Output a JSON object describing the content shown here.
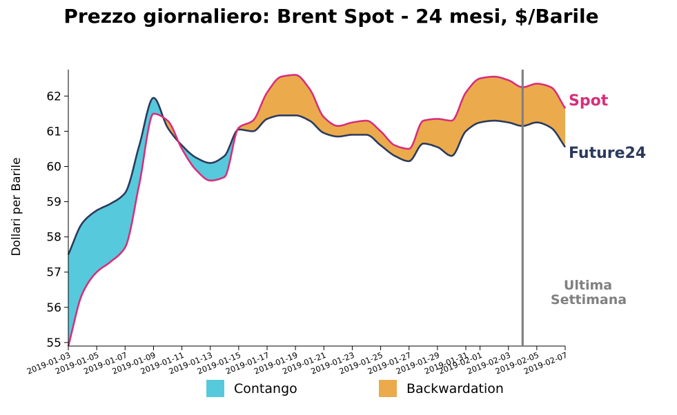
{
  "chart_data": {
    "type": "area",
    "title": "Prezzo giornaliero: Brent Spot - 24 mesi, $/Barile",
    "ylabel": "Dollari per Barile",
    "xlabel": "",
    "ylim": [
      54.9,
      62.75
    ],
    "yticks": [
      55,
      56,
      57,
      58,
      59,
      60,
      61,
      62
    ],
    "x": [
      "2019-01-03",
      "2019-01-04",
      "2019-01-05",
      "2019-01-06",
      "2019-01-07",
      "2019-01-08",
      "2019-01-09",
      "2019-01-10",
      "2019-01-11",
      "2019-01-12",
      "2019-01-13",
      "2019-01-14",
      "2019-01-15",
      "2019-01-16",
      "2019-01-17",
      "2019-01-18",
      "2019-01-19",
      "2019-01-20",
      "2019-01-21",
      "2019-01-22",
      "2019-01-23",
      "2019-01-24",
      "2019-01-25",
      "2019-01-26",
      "2019-01-27",
      "2019-01-28",
      "2019-01-29",
      "2019-01-30",
      "2019-01-31",
      "2019-02-01",
      "2019-02-02",
      "2019-02-03",
      "2019-02-04",
      "2019-02-05",
      "2019-02-06",
      "2019-02-07"
    ],
    "xticks": [
      "2019-01-03",
      "2019-01-05",
      "2019-01-07",
      "2019-01-09",
      "2019-01-11",
      "2019-01-13",
      "2019-01-15",
      "2019-01-17",
      "2019-01-19",
      "2019-01-21",
      "2019-01-23",
      "2019-01-25",
      "2019-01-27",
      "2019-01-29",
      "2019-01-31",
      "2019-02-01",
      "2019-02-03",
      "2019-02-05",
      "2019-02-07"
    ],
    "series": [
      {
        "name": "Spot",
        "color": "#d62f7a",
        "values": [
          54.9,
          56.4,
          57.0,
          57.3,
          57.7,
          59.5,
          61.5,
          61.3,
          60.5,
          59.9,
          59.6,
          59.7,
          61.1,
          61.3,
          62.1,
          62.55,
          62.6,
          62.2,
          61.4,
          61.15,
          61.25,
          61.3,
          61.0,
          60.6,
          60.5,
          61.3,
          61.35,
          61.3,
          62.1,
          62.5,
          62.55,
          62.45,
          62.25,
          62.35,
          62.25,
          61.65
        ]
      },
      {
        "name": "Future24",
        "color": "#2b3a5c",
        "values": [
          57.5,
          58.4,
          58.75,
          58.95,
          59.25,
          60.6,
          61.95,
          61.1,
          60.6,
          60.25,
          60.1,
          60.3,
          61.05,
          61.0,
          61.35,
          61.45,
          61.45,
          61.3,
          60.95,
          60.85,
          60.9,
          60.9,
          60.6,
          60.3,
          60.15,
          60.65,
          60.55,
          60.3,
          61.0,
          61.25,
          61.3,
          61.25,
          61.15,
          61.25,
          61.1,
          60.55
        ]
      }
    ],
    "fills": [
      {
        "name": "Contango",
        "color": "#56c9dc"
      },
      {
        "name": "Backwardation",
        "color": "#ebab4c"
      }
    ],
    "annotations": {
      "week_line_x": "2019-02-05",
      "week_label_line1": "Ultima",
      "week_label_line2": "Settimana",
      "week_color": "#808080"
    }
  }
}
